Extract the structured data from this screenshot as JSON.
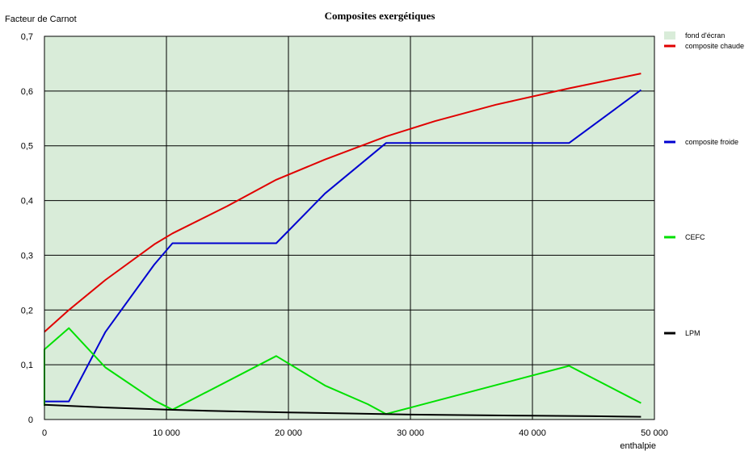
{
  "chart_data": {
    "type": "line",
    "title": "Composites exergétiques",
    "ylabel": "Facteur de Carnot",
    "xlabel": "enthalpie",
    "xlim": [
      0,
      50000
    ],
    "ylim": [
      0,
      0.7
    ],
    "x_ticks": [
      0,
      10000,
      20000,
      30000,
      40000,
      50000
    ],
    "x_tick_labels": [
      "0",
      "10 000",
      "20 000",
      "30 000",
      "40 000",
      "50 000"
    ],
    "y_ticks": [
      0,
      0.1,
      0.2,
      0.3,
      0.4,
      0.5,
      0.6,
      0.7
    ],
    "y_tick_labels": [
      "0",
      "0,1",
      "0,2",
      "0,3",
      "0,4",
      "0,5",
      "0,6",
      "0,7"
    ],
    "grid": true,
    "background": {
      "name": "fond d'écran",
      "color": "#d9ecd9"
    },
    "legend_position": "right",
    "series": [
      {
        "name": "composite chaude",
        "color": "#e00000",
        "points": [
          [
            0,
            0.16
          ],
          [
            2000,
            0.2
          ],
          [
            5000,
            0.255
          ],
          [
            9000,
            0.32
          ],
          [
            10500,
            0.34
          ],
          [
            15000,
            0.39
          ],
          [
            19000,
            0.438
          ],
          [
            23000,
            0.475
          ],
          [
            28000,
            0.517
          ],
          [
            32000,
            0.545
          ],
          [
            37000,
            0.575
          ],
          [
            43000,
            0.605
          ],
          [
            48900,
            0.632
          ]
        ]
      },
      {
        "name": "composite froide",
        "color": "#0000d0",
        "points": [
          [
            0,
            0.033
          ],
          [
            2000,
            0.033
          ],
          [
            5000,
            0.16
          ],
          [
            9000,
            0.283
          ],
          [
            10500,
            0.322
          ],
          [
            19000,
            0.322
          ],
          [
            23000,
            0.413
          ],
          [
            28000,
            0.505
          ],
          [
            43000,
            0.505
          ],
          [
            48900,
            0.602
          ]
        ]
      },
      {
        "name": "CEFC",
        "color": "#00e000",
        "points": [
          [
            0,
            0.025
          ],
          [
            0,
            0.128
          ],
          [
            2000,
            0.167
          ],
          [
            5000,
            0.095
          ],
          [
            9000,
            0.035
          ],
          [
            10500,
            0.018
          ],
          [
            19000,
            0.116
          ],
          [
            23000,
            0.062
          ],
          [
            26500,
            0.028
          ],
          [
            28000,
            0.01
          ],
          [
            43000,
            0.098
          ],
          [
            48900,
            0.03
          ]
        ]
      },
      {
        "name": "LPM",
        "color": "#000000",
        "points": [
          [
            0,
            0.027
          ],
          [
            5000,
            0.022
          ],
          [
            10000,
            0.018
          ],
          [
            15000,
            0.015
          ],
          [
            20000,
            0.013
          ],
          [
            25000,
            0.011
          ],
          [
            30000,
            0.009
          ],
          [
            35000,
            0.008
          ],
          [
            40000,
            0.007
          ],
          [
            45000,
            0.006
          ],
          [
            48900,
            0.005
          ]
        ]
      }
    ]
  }
}
